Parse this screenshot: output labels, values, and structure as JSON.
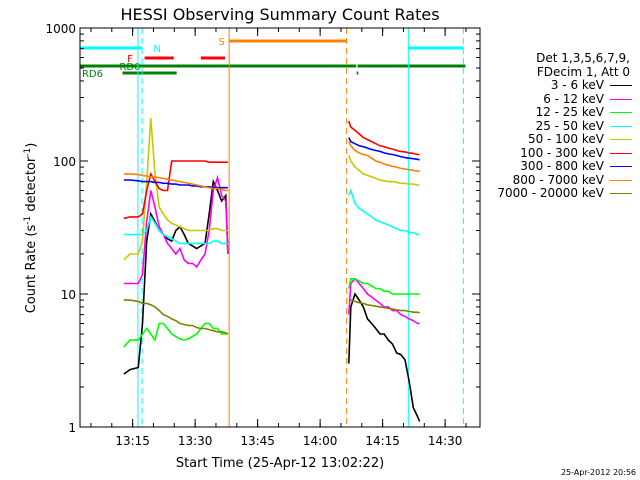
{
  "chart_data": {
    "type": "line",
    "title": "HESSI Observing Summary Count Rates",
    "xlabel": "Start Time (25-Apr-12 13:02:22)",
    "ylabel_main": "Count Rate (s",
    "ylabel_sup1": "-1",
    "ylabel_mid": " detector",
    "ylabel_sup2": "-1",
    "ylabel_end": ")",
    "yscale": "log",
    "ylim": [
      1,
      1000
    ],
    "xlim_minutes": [
      0,
      96
    ],
    "xticks": [
      "13:15",
      "13:30",
      "13:45",
      "14:00",
      "14:15",
      "14:30"
    ],
    "xtick_minutes": [
      12.63,
      27.63,
      42.63,
      57.63,
      72.63,
      87.63
    ],
    "yticks": [
      "1",
      "10",
      "100",
      "1000"
    ],
    "ytick_values": [
      1,
      10,
      100,
      1000
    ],
    "legend_header": [
      "Det 1,3,5,6,7,9,",
      "FDecim 1, Att 0"
    ],
    "series": [
      {
        "name": "3 - 6 keV",
        "color": "#000000",
        "segments": [
          {
            "x": [
              10.5,
              12,
              14,
              15,
              16,
              17,
              18,
              19,
              20,
              21,
              22,
              23,
              24,
              25,
              26,
              27,
              28,
              29,
              30,
              31,
              32,
              33,
              34,
              35,
              35.5
            ],
            "y": [
              2.5,
              2.7,
              2.8,
              6,
              25,
              40,
              35,
              30,
              28,
              26,
              25,
              30,
              32,
              28,
              24,
              23,
              22,
              23,
              24,
              40,
              70,
              60,
              50,
              55,
              20
            ]
          },
          {
            "x": [
              64.5,
              65,
              66,
              67,
              68,
              69,
              70,
              71,
              72,
              73,
              74,
              75,
              76,
              77,
              78,
              79,
              80,
              81,
              81.5
            ],
            "y": [
              3,
              8,
              10,
              9,
              8,
              6.5,
              6,
              5.5,
              5,
              5,
              4.5,
              4.2,
              3.6,
              3.5,
              3.2,
              2.2,
              1.4,
              1.2,
              1.1
            ]
          }
        ]
      },
      {
        "name": "6 - 12 keV",
        "color": "#ff00ff",
        "segments": [
          {
            "x": [
              10.5,
              12,
              14,
              15,
              16,
              17,
              18,
              19,
              20,
              21,
              22,
              23,
              24,
              25,
              26,
              27,
              28,
              29,
              30,
              31,
              32,
              33,
              34,
              35,
              35.5
            ],
            "y": [
              12,
              12,
              12,
              14,
              35,
              60,
              45,
              32,
              28,
              24,
              22,
              20,
              22,
              18,
              17,
              17,
              16,
              18,
              20,
              30,
              60,
              75,
              55,
              50,
              20
            ]
          },
          {
            "x": [
              64.5,
              65,
              66,
              67,
              68,
              69,
              70,
              71,
              72,
              73,
              74,
              75,
              76,
              77,
              78,
              79,
              80,
              81,
              81.5
            ],
            "y": [
              7,
              12,
              13,
              12,
              11,
              10,
              9.5,
              9,
              8.5,
              8,
              8,
              7.5,
              7.5,
              7,
              6.8,
              6.5,
              6.3,
              6,
              6
            ]
          }
        ]
      },
      {
        "name": "12 - 25 keV",
        "color": "#00ff00",
        "segments": [
          {
            "x": [
              10.5,
              12,
              14,
              15,
              16,
              17,
              18,
              19,
              20,
              21,
              22,
              23,
              24,
              25,
              26,
              27,
              28,
              29,
              30,
              31,
              32,
              33,
              34,
              35,
              35.5
            ],
            "y": [
              4,
              4.5,
              4.5,
              5,
              5.5,
              5,
              4.5,
              6,
              6,
              5.5,
              5,
              4.8,
              4.6,
              4.5,
              4.6,
              4.8,
              5,
              5.5,
              6,
              6,
              5.5,
              5.5,
              5,
              5,
              5
            ]
          },
          {
            "x": [
              64.5,
              65,
              66,
              67,
              68,
              69,
              70,
              71,
              72,
              73,
              74,
              75,
              76,
              77,
              78,
              79,
              80,
              81,
              81.5
            ],
            "y": [
              11,
              13,
              13,
              12.5,
              12,
              12,
              11.5,
              11,
              11,
              10.5,
              10.5,
              10,
              10,
              10,
              10,
              10,
              10,
              10,
              10
            ]
          }
        ]
      },
      {
        "name": "25 - 50 keV",
        "color": "#00ffff",
        "segments": [
          {
            "x": [
              10.5,
              12,
              14,
              15,
              16,
              17,
              18,
              19,
              20,
              21,
              22,
              23,
              24,
              25,
              26,
              27,
              28,
              29,
              30,
              31,
              32,
              33,
              34,
              35,
              35.5
            ],
            "y": [
              28,
              28,
              28,
              28,
              30,
              38,
              34,
              30,
              28,
              27,
              26,
              25,
              24,
              24,
              24,
              24,
              24,
              24,
              24,
              24,
              25,
              25,
              24,
              24,
              24
            ]
          },
          {
            "x": [
              64.5,
              65,
              66,
              67,
              68,
              69,
              70,
              71,
              72,
              73,
              74,
              75,
              76,
              77,
              78,
              79,
              80,
              81,
              81.5
            ],
            "y": [
              55,
              60,
              48,
              44,
              42,
              40,
              38,
              36,
              35,
              34,
              33,
              32,
              31,
              30,
              30,
              29,
              29,
              28,
              28
            ]
          }
        ]
      },
      {
        "name": "50 - 100 keV",
        "color": "#c8c800",
        "segments": [
          {
            "x": [
              10.5,
              12,
              14,
              15,
              16,
              17,
              18,
              19,
              20,
              21,
              22,
              23,
              24,
              25,
              26,
              27,
              28,
              29,
              30,
              31,
              32,
              33,
              34,
              35,
              35.5
            ],
            "y": [
              18,
              20,
              20,
              25,
              70,
              210,
              80,
              45,
              40,
              36,
              34,
              33,
              32,
              31,
              30,
              30,
              30,
              30,
              30,
              30,
              31,
              31,
              30,
              30,
              30
            ]
          },
          {
            "x": [
              64.5,
              65,
              66,
              67,
              68,
              69,
              70,
              71,
              72,
              73,
              74,
              75,
              76,
              77,
              78,
              79,
              80,
              81,
              81.5
            ],
            "y": [
              110,
              100,
              90,
              85,
              80,
              78,
              76,
              74,
              72,
              71,
              70,
              70,
              69,
              68,
              68,
              67,
              67,
              66,
              66
            ]
          }
        ]
      },
      {
        "name": "100 - 300 keV",
        "color": "#ff0000",
        "segments": [
          {
            "x": [
              10.5,
              12,
              14,
              15,
              16,
              17,
              18,
              19,
              20,
              21,
              22,
              23,
              24,
              25,
              26,
              27,
              28,
              29,
              30,
              31,
              32,
              33,
              34,
              35,
              35.5
            ],
            "y": [
              37,
              38,
              38,
              40,
              60,
              80,
              70,
              62,
              60,
              60,
              100,
              100,
              100,
              100,
              100,
              100,
              100,
              100,
              100,
              98,
              98,
              98,
              98,
              98,
              98
            ]
          },
          {
            "x": [
              64.5,
              65,
              66,
              67,
              68,
              69,
              70,
              71,
              72,
              73,
              74,
              75,
              76,
              77,
              78,
              79,
              80,
              81,
              81.5
            ],
            "y": [
              200,
              180,
              170,
              160,
              150,
              145,
              140,
              135,
              130,
              128,
              125,
              123,
              120,
              118,
              117,
              115,
              114,
              112,
              112
            ]
          }
        ]
      },
      {
        "name": "300 - 800 keV",
        "color": "#0000ff",
        "segments": [
          {
            "x": [
              10.5,
              12,
              14,
              15,
              16,
              17,
              18,
              19,
              20,
              21,
              22,
              23,
              24,
              25,
              26,
              27,
              28,
              29,
              30,
              31,
              32,
              33,
              34,
              35,
              35.5
            ],
            "y": [
              72,
              72,
              71,
              70,
              70,
              70,
              69,
              69,
              68,
              68,
              67,
              67,
              66,
              66,
              66,
              65,
              65,
              64,
              64,
              64,
              63,
              63,
              63,
              63,
              63
            ]
          },
          {
            "x": [
              64.5,
              65,
              66,
              67,
              68,
              69,
              70,
              71,
              72,
              73,
              74,
              75,
              76,
              77,
              78,
              79,
              80,
              81,
              81.5
            ],
            "y": [
              150,
              140,
              135,
              130,
              128,
              125,
              122,
              120,
              118,
              115,
              113,
              112,
              110,
              108,
              106,
              105,
              104,
              103,
              102
            ]
          }
        ]
      },
      {
        "name": "800 - 7000 keV",
        "color": "#ff8000",
        "segments": [
          {
            "x": [
              10.5,
              12,
              14,
              15,
              16,
              17,
              18,
              19,
              20,
              21,
              22,
              23,
              24,
              25,
              26,
              27,
              28,
              29,
              30,
              31,
              32,
              33,
              34,
              35,
              35.5
            ],
            "y": [
              80,
              80,
              79,
              78,
              77,
              76,
              76,
              75,
              74,
              73,
              72,
              71,
              70,
              69,
              68,
              67,
              66,
              65,
              64,
              63,
              62,
              62,
              61,
              60,
              60
            ]
          },
          {
            "x": [
              64.5,
              65,
              66,
              67,
              68,
              69,
              70,
              71,
              72,
              73,
              74,
              75,
              76,
              77,
              78,
              79,
              80,
              81,
              81.5
            ],
            "y": [
              140,
              130,
              120,
              115,
              112,
              110,
              105,
              100,
              98,
              95,
              93,
              91,
              90,
              88,
              87,
              86,
              85,
              84,
              84
            ]
          }
        ]
      },
      {
        "name": "7000 - 20000 keV",
        "color": "#808000",
        "segments": [
          {
            "x": [
              10.5,
              12,
              14,
              15,
              16,
              17,
              18,
              19,
              20,
              21,
              22,
              23,
              24,
              25,
              26,
              27,
              28,
              29,
              30,
              31,
              32,
              33,
              34,
              35,
              35.5
            ],
            "y": [
              9,
              9,
              8.8,
              8.5,
              8.5,
              8.3,
              8,
              7.5,
              7,
              6.8,
              6.5,
              6.3,
              6,
              5.9,
              5.8,
              5.8,
              5.6,
              5.5,
              5.5,
              5.4,
              5.3,
              5.2,
              5.2,
              5.1,
              5
            ]
          },
          {
            "x": [
              64.5,
              65,
              66,
              67,
              68,
              69,
              70,
              71,
              72,
              73,
              74,
              75,
              76,
              77,
              78,
              79,
              80,
              81,
              81.5
            ],
            "y": [
              9,
              9,
              8.8,
              8.6,
              8.5,
              8.3,
              8.2,
              8.1,
              8,
              7.9,
              7.8,
              7.7,
              7.6,
              7.5,
              7.5,
              7.4,
              7.3,
              7.3,
              7.2
            ]
          }
        ]
      }
    ],
    "vlines": [
      {
        "x": 13.9,
        "color": "#00ffff",
        "dash": false
      },
      {
        "x": 14.9,
        "color": "#00ffff",
        "dash": true
      },
      {
        "x": 35.8,
        "color": "#ff8000",
        "dash": false
      },
      {
        "x": 64.0,
        "color": "#ff8000",
        "dash": true
      },
      {
        "x": 78.8,
        "color": "#00ffff",
        "dash": false
      },
      {
        "x": 92.0,
        "color": "#00ffff",
        "dash": true
      }
    ],
    "flag_bars": [
      {
        "label": "N",
        "color": "#00ffff",
        "segments": [
          [
            0,
            14.9
          ],
          [
            78.8,
            92.0
          ]
        ]
      },
      {
        "label": "S",
        "color": "#ff8000",
        "segments": [
          [
            35.8,
            64.0
          ]
        ]
      },
      {
        "label": "F",
        "color": "#ff0000",
        "segments": [
          [
            15.5,
            22.5
          ],
          [
            29.0,
            34.8
          ]
        ]
      },
      {
        "label": "RD0",
        "color": "#008000",
        "segments": [
          [
            0,
            66.3
          ],
          [
            66.6,
            92.5
          ]
        ]
      },
      {
        "label": "RD6",
        "color": "#008000",
        "segments": [
          [
            10.2,
            23.2
          ],
          [
            66.4,
            66.8
          ]
        ]
      }
    ]
  },
  "timestamp": "25-Apr-2012 20:56"
}
